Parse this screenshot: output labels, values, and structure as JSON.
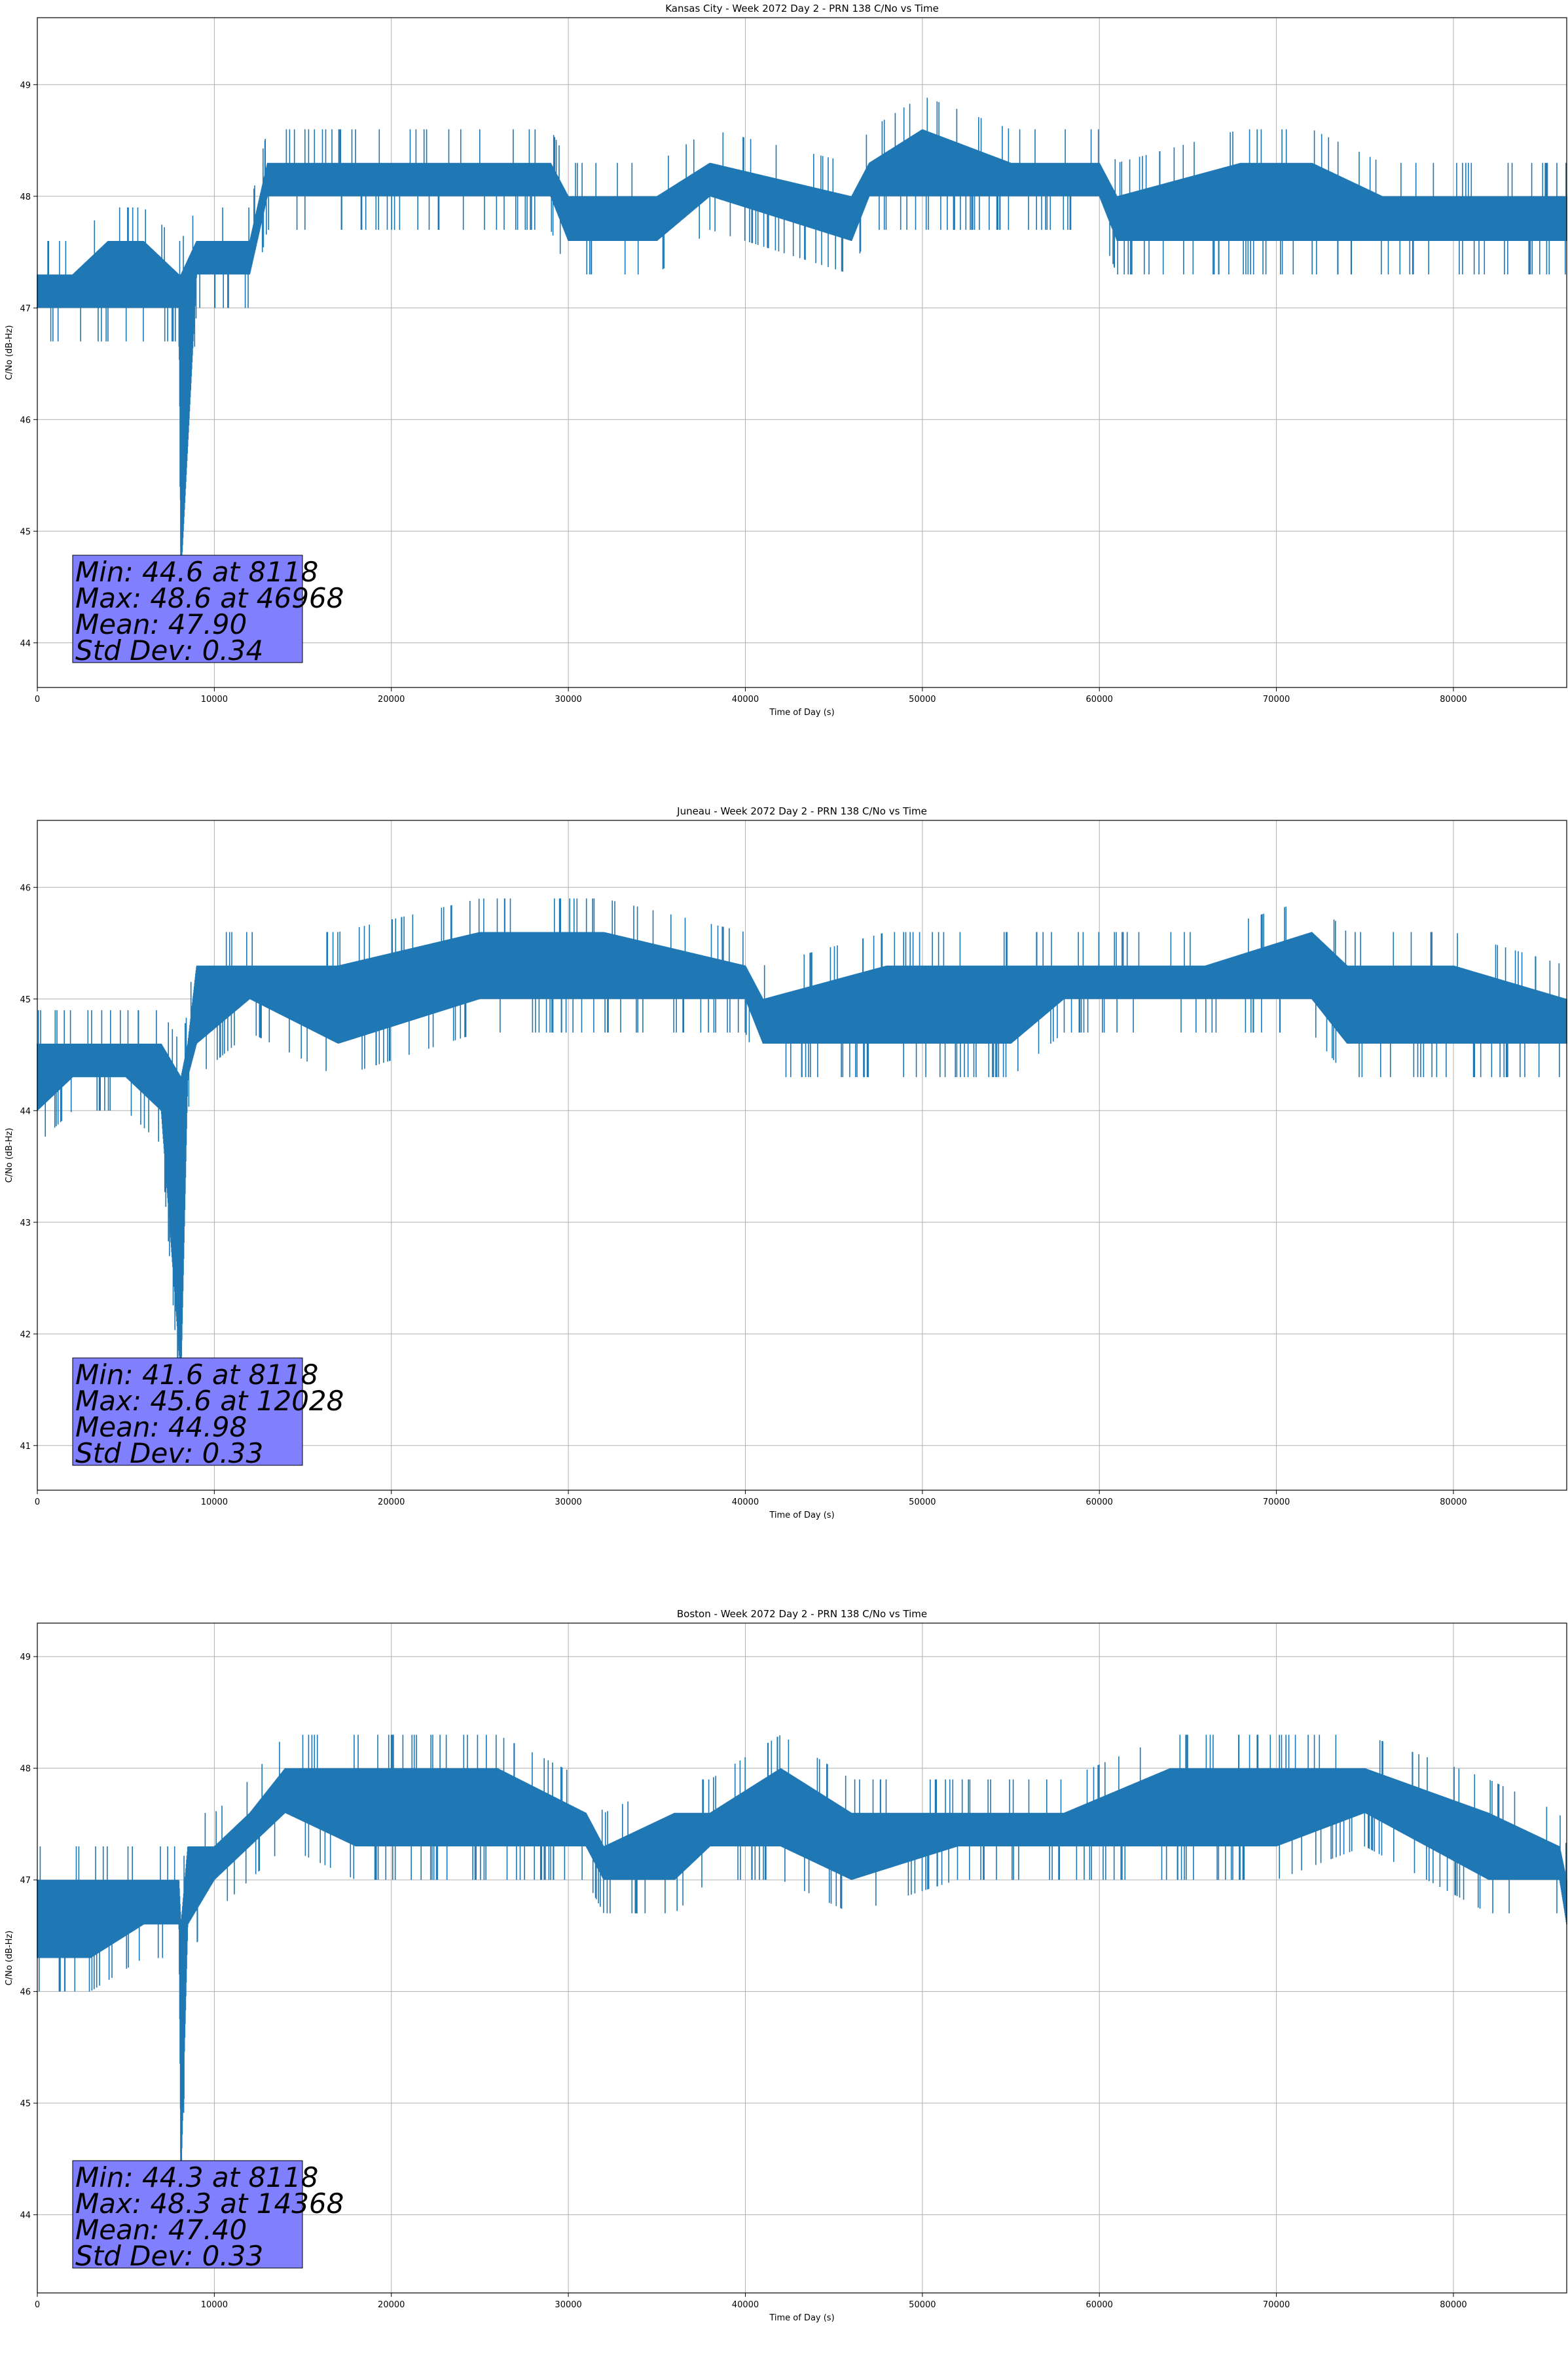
{
  "chart_data": [
    {
      "type": "line",
      "title": "Kansas City - Week 2072 Day 2 - PRN 138 C/No vs Time",
      "xlabel": "Time of Day (s)",
      "ylabel": "C/No (dB-Hz)",
      "xlim": [
        0,
        86400
      ],
      "ylim": [
        43.6,
        49.6
      ],
      "xticks": [
        0,
        10000,
        20000,
        30000,
        40000,
        50000,
        60000,
        70000,
        80000
      ],
      "yticks": [
        44,
        45,
        46,
        47,
        48,
        49
      ],
      "grid": true,
      "line_color": "#1f77b4",
      "stats_box_color": "#8080ff",
      "stats": [
        "Min: 44.6 at 8118",
        "Max: 48.6 at 46968",
        "Mean: 47.90",
        "Std Dev: 0.34"
      ],
      "series": [
        {
          "x": [
            0,
            2000,
            4000,
            6000,
            8000,
            8118,
            9000,
            12000,
            13000,
            20000,
            29000,
            30000,
            35000,
            38000,
            46000,
            47000,
            50000,
            55000,
            60000,
            61000,
            68000,
            72000,
            76000,
            86400
          ],
          "low": [
            47.0,
            47.0,
            47.0,
            47.0,
            47.0,
            44.6,
            47.3,
            47.3,
            48.0,
            48.0,
            48.0,
            47.6,
            47.6,
            48.0,
            47.6,
            48.0,
            48.0,
            48.0,
            48.0,
            47.6,
            47.6,
            47.6,
            47.6,
            47.6
          ],
          "high": [
            47.3,
            47.3,
            47.6,
            47.6,
            47.3,
            47.3,
            47.6,
            47.6,
            48.3,
            48.3,
            48.3,
            48.0,
            48.0,
            48.3,
            48.0,
            48.3,
            48.6,
            48.3,
            48.3,
            48.0,
            48.3,
            48.3,
            48.0,
            48.0
          ]
        }
      ]
    },
    {
      "type": "line",
      "title": "Juneau - Week 2072 Day 2 - PRN 138 C/No vs Time",
      "xlabel": "Time of Day (s)",
      "ylabel": "C/No (dB-Hz)",
      "xlim": [
        0,
        86400
      ],
      "ylim": [
        40.6,
        46.6
      ],
      "xticks": [
        0,
        10000,
        20000,
        30000,
        40000,
        50000,
        60000,
        70000,
        80000
      ],
      "yticks": [
        41,
        42,
        43,
        44,
        45,
        46
      ],
      "grid": true,
      "line_color": "#1f77b4",
      "stats_box_color": "#8080ff",
      "stats": [
        "Min: 41.6 at 8118",
        "Max: 45.6 at 12028",
        "Mean: 44.98",
        "Std Dev: 0.33"
      ],
      "series": [
        {
          "x": [
            0,
            2000,
            5000,
            7000,
            8118,
            8500,
            9000,
            12000,
            17000,
            25000,
            32000,
            40000,
            41000,
            48000,
            55000,
            58000,
            66000,
            72000,
            74000,
            80000,
            86400
          ],
          "low": [
            44.0,
            44.3,
            44.3,
            44.0,
            41.6,
            44.3,
            44.6,
            45.0,
            44.6,
            45.0,
            45.0,
            45.0,
            44.6,
            44.6,
            44.6,
            45.0,
            45.0,
            45.0,
            44.6,
            44.6,
            44.6
          ],
          "high": [
            44.6,
            44.6,
            44.6,
            44.6,
            44.3,
            44.6,
            45.3,
            45.3,
            45.3,
            45.6,
            45.6,
            45.3,
            45.0,
            45.3,
            45.3,
            45.3,
            45.3,
            45.6,
            45.3,
            45.3,
            45.0
          ]
        }
      ]
    },
    {
      "type": "line",
      "title": "Boston - Week 2072 Day 2 - PRN 138 C/No vs Time",
      "xlabel": "Time of Day (s)",
      "ylabel": "C/No (dB-Hz)",
      "xlim": [
        0,
        86400
      ],
      "ylim": [
        43.3,
        49.3
      ],
      "xticks": [
        0,
        10000,
        20000,
        30000,
        40000,
        50000,
        60000,
        70000,
        80000
      ],
      "yticks": [
        44,
        45,
        46,
        47,
        48,
        49
      ],
      "grid": true,
      "line_color": "#1f77b4",
      "stats_box_color": "#8080ff",
      "stats": [
        "Min: 44.3 at 8118",
        "Max: 48.3 at 14368",
        "Mean: 47.40",
        "Std Dev: 0.33"
      ],
      "series": [
        {
          "x": [
            0,
            3000,
            6000,
            8000,
            8118,
            8500,
            10000,
            12000,
            14000,
            18000,
            26000,
            31000,
            32000,
            36000,
            38000,
            42000,
            46000,
            52000,
            58000,
            64000,
            70000,
            75000,
            82000,
            86000,
            86400
          ],
          "low": [
            46.3,
            46.3,
            46.6,
            46.6,
            44.3,
            46.6,
            47.0,
            47.3,
            47.6,
            47.3,
            47.3,
            47.3,
            47.0,
            47.0,
            47.3,
            47.3,
            47.0,
            47.3,
            47.3,
            47.3,
            47.3,
            47.6,
            47.0,
            47.0,
            46.6
          ],
          "high": [
            47.0,
            47.0,
            47.0,
            47.0,
            46.6,
            47.3,
            47.3,
            47.6,
            48.0,
            48.0,
            48.0,
            47.6,
            47.3,
            47.6,
            47.6,
            48.0,
            47.6,
            47.6,
            47.6,
            48.0,
            48.0,
            48.0,
            47.6,
            47.3,
            47.0
          ]
        }
      ]
    }
  ]
}
